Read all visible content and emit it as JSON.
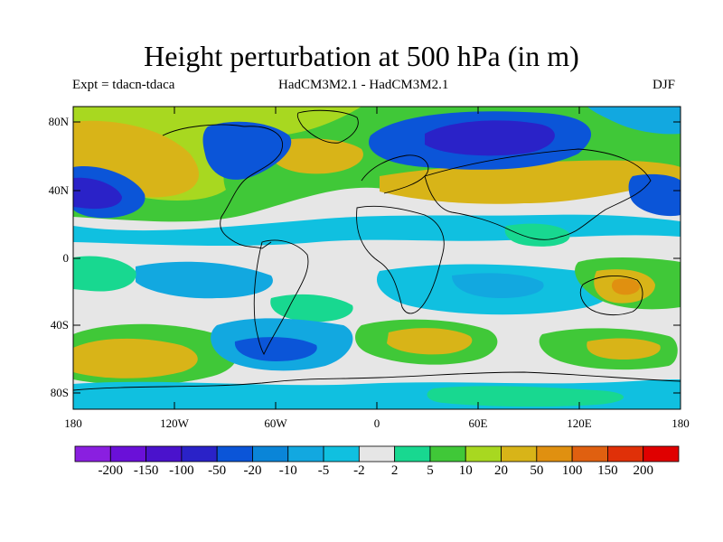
{
  "title": "Height perturbation at 500 hPa (in m)",
  "subtitle_left": "Expt = tdacn-tdaca",
  "subtitle_center": "HadCM3M2.1 - HadCM3M2.1",
  "subtitle_right": "DJF",
  "map": {
    "projection": "cylindrical equidistant",
    "variable": "500 hPa geopotential height difference",
    "units": "m",
    "lon_range": [
      -180,
      180
    ],
    "lat_range": [
      -90,
      90
    ],
    "lat_ticks": [
      "80N",
      "40N",
      "0",
      "40S",
      "80S"
    ],
    "lon_ticks": [
      "180",
      "120W",
      "60W",
      "0",
      "60E",
      "120E",
      "180"
    ]
  },
  "colorbar": {
    "labels": [
      "-200",
      "-150",
      "-100",
      "-50",
      "-20",
      "-10",
      "-5",
      "-2",
      "2",
      "5",
      "10",
      "20",
      "50",
      "100",
      "150",
      "200"
    ],
    "colors": [
      "#8a1fe0",
      "#6a10d8",
      "#4a12cc",
      "#2a22c8",
      "#0b55d8",
      "#0a85d8",
      "#12a8e0",
      "#10c0e0",
      "#e6e6e6",
      "#18d890",
      "#40c838",
      "#a8d820",
      "#d8b418",
      "#e09010",
      "#e06010",
      "#e03008",
      "#e00000"
    ]
  }
}
